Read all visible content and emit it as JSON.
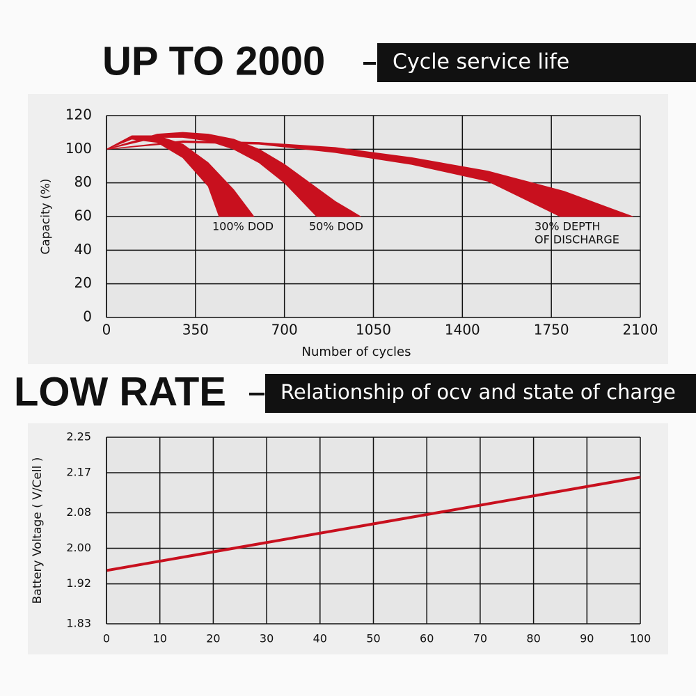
{
  "header": {
    "headline": "UP TO 2000",
    "subtitle": "Cycle service life"
  },
  "header2": {
    "headline": "LOW RATE",
    "subtitle": "Relationship of ocv and state of charge"
  },
  "chart_data": [
    {
      "type": "area",
      "xlabel": "Number of cycles",
      "ylabel": "Capacity (%)",
      "xlim": [
        0,
        2100
      ],
      "xticks": [
        0,
        350,
        700,
        1050,
        1400,
        1750,
        2100
      ],
      "ylim": [
        0,
        120
      ],
      "yticks": [
        0,
        20,
        40,
        60,
        80,
        100,
        120
      ],
      "grid": true,
      "color": "#c8101e",
      "series": [
        {
          "upper": {
            "x": [
              0,
              100,
              200,
              300,
              400,
              500,
              580
            ],
            "values": [
              100,
              108,
              108,
              103,
              92,
              76,
              60
            ]
          },
          "lower": {
            "x": [
              0,
              100,
              200,
              300,
              400,
              443
            ],
            "values": [
              100,
              106,
              104,
              95,
              78,
              60
            ]
          }
        },
        {
          "upper": {
            "x": [
              0,
              200,
              300,
              400,
              500,
              600,
              700,
              800,
              900,
              1000
            ],
            "values": [
              100,
              109,
              110,
              109,
              106,
              100,
              91,
              80,
              69,
              60
            ]
          },
          "lower": {
            "x": [
              0,
              200,
              300,
              400,
              500,
              600,
              700,
              827
            ],
            "values": [
              100,
              107,
              107,
              105,
              100,
              92,
              80,
              60
            ]
          }
        },
        {
          "upper": {
            "x": [
              0,
              300,
              600,
              900,
              1200,
              1500,
              1800,
              2070
            ],
            "values": [
              100,
              105,
              104,
              101,
              95,
              87,
              75,
              60
            ]
          },
          "lower": {
            "x": [
              0,
              300,
              600,
              900,
              1200,
              1500,
              1785
            ],
            "values": [
              100,
              104,
              103,
              98,
              91,
              81,
              60
            ]
          }
        }
      ],
      "annotations": [
        "100% DOD",
        "50% DOD",
        "30% DEPTH",
        "OF DISCHARGE"
      ]
    },
    {
      "type": "line",
      "ylabel": "Battery Voltage ( V/Cell )",
      "xlim": [
        0,
        100
      ],
      "xticks": [
        0,
        10,
        20,
        30,
        40,
        50,
        60,
        70,
        80,
        90,
        100
      ],
      "ylim": [
        1.83,
        2.25
      ],
      "yticks": [
        1.83,
        1.92,
        {
          "value": 2,
          "label": "2.00"
        },
        2.08,
        2.17,
        2.25
      ],
      "grid": true,
      "color": "#c8101e",
      "x": [
        0,
        100
      ],
      "values": [
        1.95,
        2.16
      ]
    }
  ]
}
